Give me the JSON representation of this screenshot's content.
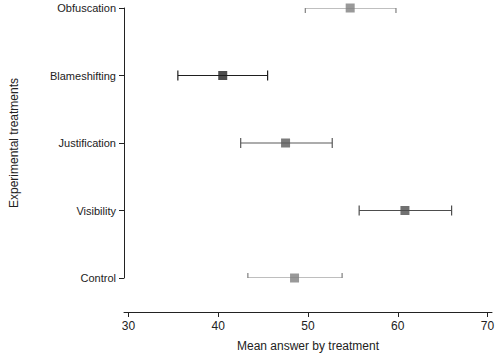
{
  "chart_data": {
    "type": "scatter",
    "orientation": "horizontal",
    "categories": [
      "Control",
      "Visibility",
      "Justification",
      "Blameshifting",
      "Obfuscation"
    ],
    "values": [
      48.5,
      60.8,
      47.5,
      40.5,
      54.7
    ],
    "errors": {
      "lower": [
        43.3,
        55.7,
        42.5,
        35.5,
        49.7
      ],
      "upper": [
        53.8,
        66.0,
        52.7,
        45.5,
        59.8
      ]
    },
    "colors": [
      "#7f7f7f",
      "#4d4d4d",
      "#5a5a5a",
      "#1f1f1f",
      "#808080"
    ],
    "marker": "square",
    "x_label": "Mean answer by treatment",
    "y_label": "Experimental treatments",
    "xlim": [
      29.5,
      70.5
    ],
    "xticks": [
      30,
      40,
      50,
      60,
      70
    ],
    "grid": false
  }
}
